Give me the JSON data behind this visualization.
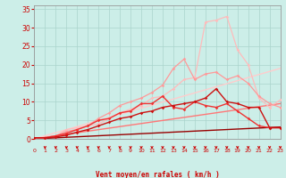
{
  "title": "",
  "xlabel": "Vent moyen/en rafales ( km/h )",
  "xlim": [
    0,
    23
  ],
  "ylim": [
    0,
    36
  ],
  "yticks": [
    0,
    5,
    10,
    15,
    20,
    25,
    30,
    35
  ],
  "xticks": [
    0,
    1,
    2,
    3,
    4,
    5,
    6,
    7,
    8,
    9,
    10,
    11,
    12,
    13,
    14,
    15,
    16,
    17,
    18,
    19,
    20,
    21,
    22,
    23
  ],
  "bg_color": "#cceee8",
  "grid_color": "#aad4cc",
  "series": [
    {
      "x": [
        0,
        1,
        2,
        3,
        4,
        5,
        6,
        7,
        8,
        9,
        10,
        11,
        12,
        13,
        14,
        15,
        16,
        17,
        18,
        19,
        20,
        21,
        22,
        23
      ],
      "y": [
        0.3,
        0.3,
        0.8,
        2.5,
        3.0,
        3.5,
        4.0,
        5.5,
        7.0,
        8.0,
        9.0,
        11.0,
        11.5,
        13.5,
        16.0,
        16.5,
        31.5,
        32.0,
        33.0,
        24.0,
        20.0,
        11.0,
        8.5,
        10.5
      ],
      "color": "#ffbbbb",
      "lw": 0.9,
      "marker": "D",
      "ms": 1.8
    },
    {
      "x": [
        0,
        1,
        2,
        3,
        4,
        5,
        6,
        7,
        8,
        9,
        10,
        11,
        12,
        13,
        14,
        15,
        16,
        17,
        18,
        19,
        20,
        21,
        22,
        23
      ],
      "y": [
        0.3,
        0.3,
        0.8,
        2.0,
        2.5,
        3.5,
        5.5,
        7.0,
        9.0,
        10.0,
        11.0,
        12.5,
        14.5,
        19.0,
        21.5,
        16.0,
        17.5,
        18.0,
        16.0,
        17.0,
        15.0,
        11.5,
        9.5,
        8.5
      ],
      "color": "#ff9999",
      "lw": 0.9,
      "marker": "D",
      "ms": 1.8
    },
    {
      "x": [
        0,
        1,
        2,
        3,
        4,
        5,
        6,
        7,
        8,
        9,
        10,
        11,
        12,
        13,
        14,
        15,
        16,
        17,
        18,
        19,
        20,
        21,
        22,
        23
      ],
      "y": [
        0.3,
        0.3,
        0.8,
        1.5,
        2.5,
        3.5,
        5.0,
        5.5,
        7.0,
        7.5,
        9.5,
        9.5,
        11.5,
        8.5,
        8.0,
        10.0,
        9.0,
        8.5,
        9.5,
        7.5,
        5.5,
        3.5,
        3.0,
        3.0
      ],
      "color": "#ee3333",
      "lw": 1.0,
      "marker": "D",
      "ms": 1.8
    },
    {
      "x": [
        0,
        1,
        2,
        3,
        4,
        5,
        6,
        7,
        8,
        9,
        10,
        11,
        12,
        13,
        14,
        15,
        16,
        17,
        18,
        19,
        20,
        21,
        22,
        23
      ],
      "y": [
        0.3,
        0.3,
        0.5,
        1.0,
        1.8,
        2.5,
        3.5,
        4.5,
        5.5,
        6.0,
        7.0,
        7.5,
        8.5,
        9.0,
        9.5,
        10.0,
        11.0,
        13.5,
        10.0,
        9.5,
        8.5,
        8.5,
        3.0,
        3.0
      ],
      "color": "#cc1111",
      "lw": 1.0,
      "marker": "D",
      "ms": 1.8
    },
    {
      "x": [
        0,
        23
      ],
      "y": [
        0,
        19.0
      ],
      "color": "#ffcccc",
      "lw": 1.0,
      "marker": null,
      "ms": 0
    },
    {
      "x": [
        0,
        23
      ],
      "y": [
        0,
        9.5
      ],
      "color": "#ff7777",
      "lw": 1.0,
      "marker": null,
      "ms": 0
    },
    {
      "x": [
        0,
        23
      ],
      "y": [
        0,
        3.2
      ],
      "color": "#990000",
      "lw": 1.0,
      "marker": null,
      "ms": 0
    }
  ],
  "wind_arrows_x": [
    1,
    2,
    3,
    4,
    5,
    6,
    7,
    8,
    9,
    10,
    11,
    12,
    13,
    14,
    15,
    16,
    17,
    18,
    19,
    20,
    21,
    22,
    23
  ],
  "arrow_color": "#cc0000"
}
